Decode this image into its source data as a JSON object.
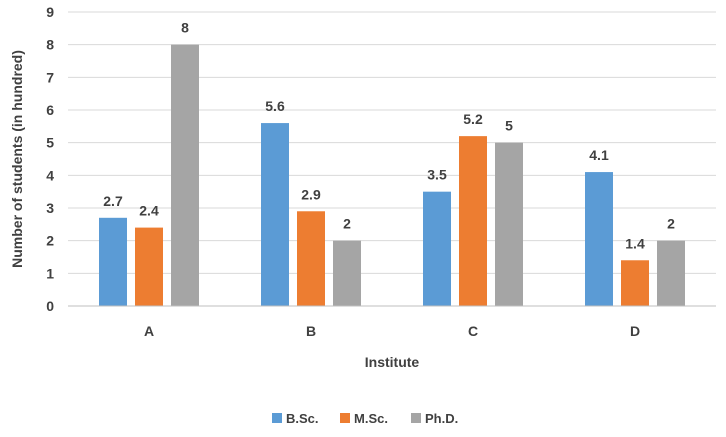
{
  "chart_data": {
    "type": "bar",
    "categories": [
      "A",
      "B",
      "C",
      "D"
    ],
    "series": [
      {
        "name": "B.Sc.",
        "values": [
          2.7,
          5.6,
          3.5,
          4.1
        ],
        "color": "#5b9bd5"
      },
      {
        "name": "M.Sc.",
        "values": [
          2.4,
          2.9,
          5.2,
          1.4
        ],
        "color": "#ed7d31"
      },
      {
        "name": "Ph.D.",
        "values": [
          8,
          2,
          5,
          2
        ],
        "color": "#a5a5a5"
      }
    ],
    "data_labels": [
      [
        "2.7",
        "5.6",
        "3.5",
        "4.1"
      ],
      [
        "2.4",
        "2.9",
        "5.2",
        "1.4"
      ],
      [
        "8",
        "2",
        "5",
        "2"
      ]
    ],
    "y_ticks": [
      "0",
      "1",
      "2",
      "3",
      "4",
      "5",
      "6",
      "7",
      "8",
      "9"
    ],
    "title": "",
    "xlabel": "Institute",
    "ylabel": "Number of students (in hundred)",
    "ylim": [
      0,
      9
    ],
    "grid": true,
    "legend_position": "bottom"
  }
}
